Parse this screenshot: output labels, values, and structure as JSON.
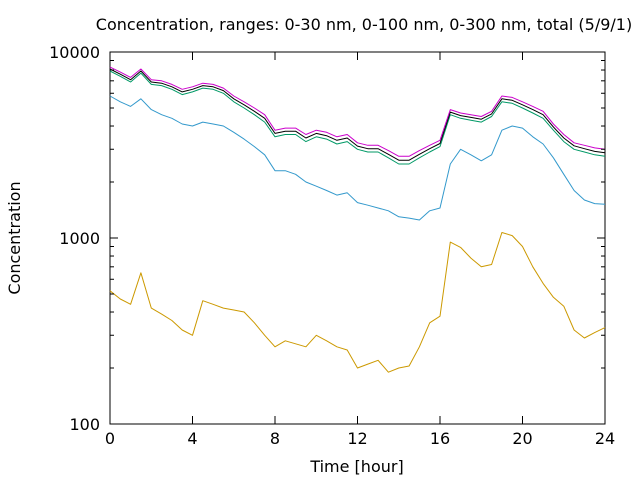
{
  "chart_data": {
    "type": "line",
    "title": "Concentration, ranges: 0-30 nm, 0-100 nm, 0-300 nm, total (5/9/1)",
    "xlabel": "Time [hour]",
    "ylabel": "Concentration",
    "xlim": [
      0,
      24
    ],
    "ylim": [
      100,
      10000
    ],
    "yscale": "log",
    "grid": false,
    "legend": "none",
    "x_ticks": [
      0,
      4,
      8,
      12,
      16,
      20,
      24
    ],
    "x_tick_labels": [
      "0",
      "4",
      "8",
      "12",
      "16",
      "20",
      "24"
    ],
    "y_ticks": [
      100,
      1000,
      10000
    ],
    "y_tick_labels": [
      "100",
      "1000",
      "10000"
    ],
    "series": [
      {
        "color": "#cc9900",
        "x": [
          0,
          0.5,
          1,
          1.5,
          2,
          2.5,
          3,
          3.5,
          4,
          4.5,
          5,
          5.5,
          6,
          6.5,
          7,
          7.5,
          8,
          8.5,
          9,
          9.5,
          10,
          10.5,
          11,
          11.5,
          12,
          12.5,
          13,
          13.5,
          14,
          14.5,
          15,
          15.5,
          16,
          16.5,
          17,
          17.5,
          18,
          18.5,
          19,
          19.5,
          20,
          20.5,
          21,
          21.5,
          22,
          22.5,
          23,
          23.5,
          24
        ],
        "values": [
          520,
          470,
          440,
          650,
          420,
          390,
          360,
          320,
          300,
          460,
          440,
          420,
          410,
          400,
          350,
          300,
          260,
          280,
          270,
          260,
          300,
          280,
          260,
          250,
          200,
          210,
          220,
          190,
          200,
          205,
          260,
          350,
          380,
          950,
          890,
          780,
          700,
          720,
          1070,
          1030,
          900,
          700,
          570,
          480,
          430,
          320,
          290,
          310,
          330
        ]
      },
      {
        "color": "#3399cc",
        "x": [
          0,
          0.5,
          1,
          1.5,
          2,
          2.5,
          3,
          3.5,
          4,
          4.5,
          5,
          5.5,
          6,
          6.5,
          7,
          7.5,
          8,
          8.5,
          9,
          9.5,
          10,
          10.5,
          11,
          11.5,
          12,
          12.5,
          13,
          13.5,
          14,
          14.5,
          15,
          15.5,
          16,
          16.5,
          17,
          17.5,
          18,
          18.5,
          19,
          19.5,
          20,
          20.5,
          21,
          21.5,
          22,
          22.5,
          23,
          23.5,
          24
        ],
        "values": [
          5800,
          5400,
          5100,
          5600,
          4900,
          4600,
          4400,
          4100,
          4000,
          4200,
          4100,
          4000,
          3700,
          3400,
          3100,
          2800,
          2300,
          2300,
          2200,
          2000,
          1900,
          1800,
          1700,
          1750,
          1550,
          1500,
          1450,
          1400,
          1300,
          1280,
          1250,
          1400,
          1450,
          2500,
          3000,
          2800,
          2600,
          2800,
          3800,
          4000,
          3900,
          3500,
          3200,
          2700,
          2200,
          1800,
          1600,
          1530,
          1520
        ]
      },
      {
        "color": "#009966",
        "x": [
          0,
          0.5,
          1,
          1.5,
          2,
          2.5,
          3,
          3.5,
          4,
          4.5,
          5,
          5.5,
          6,
          6.5,
          7,
          7.5,
          8,
          8.5,
          9,
          9.5,
          10,
          10.5,
          11,
          11.5,
          12,
          12.5,
          13,
          13.5,
          14,
          14.5,
          15,
          15.5,
          16,
          16.5,
          17,
          17.5,
          18,
          18.5,
          19,
          19.5,
          20,
          20.5,
          21,
          21.5,
          22,
          22.5,
          23,
          23.5,
          24
        ],
        "values": [
          7900,
          7400,
          6900,
          7700,
          6700,
          6600,
          6300,
          5900,
          6100,
          6400,
          6300,
          6000,
          5400,
          5000,
          4600,
          4200,
          3500,
          3600,
          3600,
          3300,
          3500,
          3400,
          3200,
          3300,
          3000,
          2900,
          2900,
          2700,
          2500,
          2500,
          2700,
          2900,
          3100,
          4600,
          4400,
          4300,
          4200,
          4500,
          5400,
          5300,
          5000,
          4700,
          4400,
          3800,
          3300,
          3000,
          2900,
          2800,
          2750
        ]
      },
      {
        "color": "#000000",
        "x": [
          0,
          0.5,
          1,
          1.5,
          2,
          2.5,
          3,
          3.5,
          4,
          4.5,
          5,
          5.5,
          6,
          6.5,
          7,
          7.5,
          8,
          8.5,
          9,
          9.5,
          10,
          10.5,
          11,
          11.5,
          12,
          12.5,
          13,
          13.5,
          14,
          14.5,
          15,
          15.5,
          16,
          16.5,
          17,
          17.5,
          18,
          18.5,
          19,
          19.5,
          20,
          20.5,
          21,
          21.5,
          22,
          22.5,
          23,
          23.5,
          24
        ],
        "values": [
          8100,
          7600,
          7100,
          7900,
          6900,
          6800,
          6500,
          6100,
          6300,
          6600,
          6500,
          6200,
          5600,
          5200,
          4800,
          4400,
          3650,
          3750,
          3750,
          3450,
          3650,
          3550,
          3350,
          3450,
          3120,
          3020,
          3020,
          2820,
          2620,
          2620,
          2820,
          3020,
          3220,
          4750,
          4550,
          4450,
          4350,
          4650,
          5600,
          5500,
          5200,
          4900,
          4600,
          3950,
          3450,
          3130,
          3020,
          2920,
          2870
        ]
      },
      {
        "color": "#cc00cc",
        "x": [
          0,
          0.5,
          1,
          1.5,
          2,
          2.5,
          3,
          3.5,
          4,
          4.5,
          5,
          5.5,
          6,
          6.5,
          7,
          7.5,
          8,
          8.5,
          9,
          9.5,
          10,
          10.5,
          11,
          11.5,
          12,
          12.5,
          13,
          13.5,
          14,
          14.5,
          15,
          15.5,
          16,
          16.5,
          17,
          17.5,
          18,
          18.5,
          19,
          19.5,
          20,
          20.5,
          21,
          21.5,
          22,
          22.5,
          23,
          23.5,
          24
        ],
        "values": [
          8300,
          7800,
          7300,
          8100,
          7100,
          7000,
          6700,
          6300,
          6500,
          6800,
          6700,
          6400,
          5800,
          5400,
          5000,
          4600,
          3800,
          3900,
          3900,
          3600,
          3800,
          3700,
          3500,
          3600,
          3250,
          3150,
          3150,
          2950,
          2750,
          2750,
          2950,
          3150,
          3350,
          4900,
          4700,
          4600,
          4500,
          4800,
          5800,
          5700,
          5400,
          5100,
          4800,
          4100,
          3600,
          3250,
          3150,
          3050,
          3000
        ]
      }
    ]
  }
}
